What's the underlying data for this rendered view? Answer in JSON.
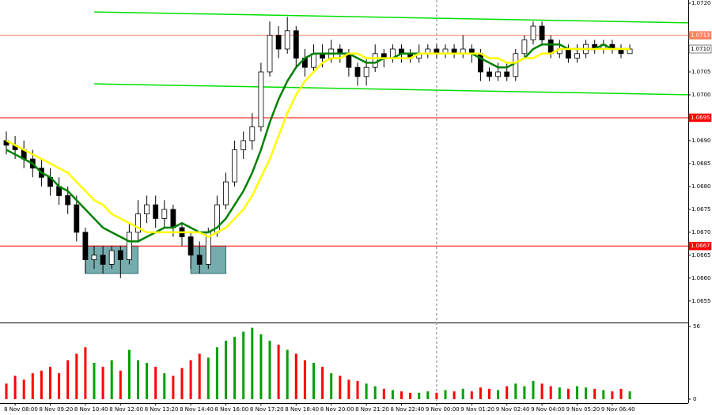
{
  "chart_data": {
    "type": "candlestick",
    "categories": [
      null,
      "8 Nov 08:00",
      null,
      null,
      null,
      "8 Nov 09:20",
      null,
      null,
      null,
      "8 Nov 10:40",
      null,
      null,
      null,
      "8 Nov 12:00",
      null,
      null,
      null,
      "8 Nov 13:20",
      null,
      null,
      null,
      "8 Nov 14:40",
      null,
      null,
      null,
      "8 Nov 16:00",
      null,
      null,
      null,
      "8 Nov 17:20",
      null,
      null,
      null,
      "8 Nov 18:40",
      null,
      null,
      null,
      "8 Nov 20:00",
      null,
      null,
      null,
      "8 Nov 21:20",
      null,
      null,
      null,
      "8 Nov 22:40",
      null,
      null,
      null,
      "9 Nov 00:00",
      null,
      null,
      null,
      "9 Nov 01:20",
      null,
      null,
      null,
      "9 Nov 02:40",
      null,
      null,
      null,
      "9 Nov 04:00",
      null,
      null,
      null,
      "9 Nov 05:20",
      null,
      null,
      null,
      "9 Nov 06:40",
      null,
      null
    ],
    "open": [
      1.069,
      1.0689,
      1.0688,
      1.0686,
      1.0684,
      1.0682,
      1.068,
      1.0678,
      1.0676,
      1.067,
      1.0664,
      1.0665,
      1.0663,
      1.0666,
      1.0664,
      1.067,
      1.0674,
      1.0676,
      1.0673,
      1.0675,
      1.0671,
      1.0669,
      1.0665,
      1.0663,
      1.067,
      1.0676,
      1.0681,
      1.0688,
      1.069,
      1.0693,
      1.0705,
      1.0713,
      1.071,
      1.0714,
      1.0708,
      1.0706,
      1.0709,
      1.0708,
      1.071,
      1.0709,
      1.0706,
      1.0704,
      1.0706,
      1.0709,
      1.0708,
      1.071,
      1.0709,
      1.0708,
      1.0709,
      1.071,
      1.0709,
      1.071,
      1.0709,
      1.071,
      1.0709,
      1.0705,
      1.0704,
      1.0705,
      1.0704,
      1.0709,
      1.0712,
      1.0715,
      1.0712,
      1.0709,
      1.071,
      1.0708,
      1.0709,
      1.0711,
      1.071,
      1.0711,
      1.071,
      1.0709
    ],
    "high": [
      1.0692,
      1.0691,
      1.069,
      1.0688,
      1.0686,
      1.0684,
      1.0682,
      1.068,
      1.0678,
      1.0671,
      1.0667,
      1.0667,
      1.0667,
      1.0667,
      1.0672,
      1.0677,
      1.0678,
      1.0678,
      1.0677,
      1.0676,
      1.0672,
      1.067,
      1.0668,
      1.0671,
      1.0678,
      1.0683,
      1.069,
      1.0692,
      1.0696,
      1.0707,
      1.0716,
      1.0715,
      1.0717,
      1.0715,
      1.071,
      1.0711,
      1.0711,
      1.0712,
      1.0711,
      1.071,
      1.0707,
      1.0708,
      1.0711,
      1.071,
      1.0711,
      1.0711,
      1.071,
      1.0711,
      1.0711,
      1.0711,
      1.0711,
      1.0711,
      1.0713,
      1.0711,
      1.071,
      1.0706,
      1.0707,
      1.0707,
      1.071,
      1.0713,
      1.0716,
      1.0716,
      1.0713,
      1.0712,
      1.0711,
      1.0711,
      1.0712,
      1.0712,
      1.0712,
      1.0712,
      1.0711,
      1.0711
    ],
    "low": [
      1.0687,
      1.0686,
      1.0684,
      1.0682,
      1.068,
      1.0678,
      1.0676,
      1.0674,
      1.0668,
      1.0661,
      1.0662,
      1.0661,
      1.0662,
      1.066,
      1.0663,
      1.0668,
      1.0672,
      1.0671,
      1.0671,
      1.0669,
      1.0667,
      1.0662,
      1.0661,
      1.0662,
      1.0669,
      1.0675,
      1.068,
      1.0686,
      1.0688,
      1.0692,
      1.0704,
      1.0708,
      1.0709,
      1.0706,
      1.0704,
      1.0705,
      1.0706,
      1.0707,
      1.0707,
      1.0704,
      1.0702,
      1.0702,
      1.0705,
      1.0706,
      1.0707,
      1.0707,
      1.0707,
      1.0707,
      1.0708,
      1.0708,
      1.0708,
      1.0708,
      1.0708,
      1.0707,
      1.0703,
      1.0703,
      1.0703,
      1.0703,
      1.0703,
      1.0708,
      1.0711,
      1.0711,
      1.0708,
      1.0708,
      1.0707,
      1.0707,
      1.0708,
      1.0709,
      1.0709,
      1.0709,
      1.0708,
      1.0709
    ],
    "close": [
      1.0689,
      1.0688,
      1.0686,
      1.0684,
      1.0682,
      1.068,
      1.0678,
      1.0676,
      1.067,
      1.0664,
      1.0665,
      1.0663,
      1.0666,
      1.0664,
      1.067,
      1.0674,
      1.0676,
      1.0673,
      1.0675,
      1.0671,
      1.0669,
      1.0665,
      1.0663,
      1.067,
      1.0676,
      1.0681,
      1.0688,
      1.069,
      1.0693,
      1.0705,
      1.0713,
      1.071,
      1.0714,
      1.0708,
      1.0706,
      1.0709,
      1.0708,
      1.071,
      1.0709,
      1.0706,
      1.0704,
      1.0706,
      1.0709,
      1.0708,
      1.071,
      1.0709,
      1.0708,
      1.0709,
      1.071,
      1.0709,
      1.071,
      1.0709,
      1.071,
      1.0709,
      1.0705,
      1.0704,
      1.0705,
      1.0704,
      1.0709,
      1.0712,
      1.0715,
      1.0712,
      1.0709,
      1.071,
      1.0708,
      1.0709,
      1.0711,
      1.071,
      1.0711,
      1.071,
      1.0709,
      1.071
    ],
    "volume": [
      12,
      18,
      15,
      20,
      22,
      25,
      20,
      30,
      35,
      40,
      28,
      25,
      30,
      22,
      38,
      30,
      28,
      25,
      20,
      18,
      24,
      30,
      35,
      32,
      40,
      45,
      48,
      52,
      55,
      50,
      45,
      42,
      38,
      35,
      30,
      28,
      25,
      20,
      18,
      15,
      14,
      12,
      10,
      8,
      7,
      6,
      5,
      5,
      6,
      5,
      7,
      6,
      8,
      6,
      9,
      8,
      7,
      10,
      12,
      10,
      14,
      12,
      10,
      9,
      8,
      10,
      9,
      8,
      7,
      6,
      8,
      6
    ],
    "up_color": "#ffffff",
    "down_color": "#000000",
    "volume_up_color": "#00a000",
    "volume_down_color": "#ff0000",
    "series": [
      {
        "color": "#008000",
        "values": [
          1.0688,
          1.0687,
          1.0686,
          1.0685,
          1.0683,
          1.0682,
          1.068,
          1.0679,
          1.0677,
          1.0675,
          1.0673,
          1.0671,
          1.067,
          1.0669,
          1.0668,
          1.0668,
          1.0669,
          1.067,
          1.0671,
          1.0671,
          1.0672,
          1.0671,
          1.067,
          1.067,
          1.0671,
          1.0673,
          1.0676,
          1.0679,
          1.0683,
          1.0688,
          1.0694,
          1.0699,
          1.0703,
          1.0706,
          1.0708,
          1.0709,
          1.0709,
          1.0709,
          1.0709,
          1.0709,
          1.0708,
          1.0707,
          1.0707,
          1.0708,
          1.0708,
          1.0709,
          1.0709,
          1.0709,
          1.0709,
          1.0709,
          1.0709,
          1.0709,
          1.0709,
          1.0709,
          1.0708,
          1.0707,
          1.0706,
          1.0706,
          1.0707,
          1.0708,
          1.071,
          1.0711,
          1.0711,
          1.0711,
          1.071,
          1.071,
          1.071,
          1.071,
          1.0711,
          1.071,
          1.071,
          1.071
        ]
      },
      {
        "color": "#ffff00",
        "values": [
          1.069,
          1.0689,
          1.0688,
          1.0687,
          1.0686,
          1.0685,
          1.0684,
          1.0683,
          1.0681,
          1.0679,
          1.0677,
          1.0676,
          1.0674,
          1.0673,
          1.0672,
          1.0671,
          1.067,
          1.067,
          1.067,
          1.067,
          1.067,
          1.067,
          1.067,
          1.0669,
          1.067,
          1.0671,
          1.0673,
          1.0675,
          1.0678,
          1.0682,
          1.0686,
          1.0691,
          1.0696,
          1.07,
          1.0703,
          1.0705,
          1.0707,
          1.0708,
          1.0708,
          1.0709,
          1.0709,
          1.0708,
          1.0708,
          1.0708,
          1.0708,
          1.0708,
          1.0708,
          1.0709,
          1.0709,
          1.0709,
          1.0709,
          1.0709,
          1.0709,
          1.0709,
          1.0709,
          1.0708,
          1.0708,
          1.0707,
          1.0707,
          1.0708,
          1.0708,
          1.0709,
          1.0709,
          1.071,
          1.071,
          1.071,
          1.071,
          1.071,
          1.071,
          1.071,
          1.071,
          1.071
        ]
      }
    ],
    "ylim": [
      1.06503,
      1.07207
    ],
    "yticks": [
      {
        "value": 1.072,
        "label": "1.0720"
      },
      {
        "value": 1.0705,
        "label": "1.0705"
      },
      {
        "value": 1.07,
        "label": "1.0700"
      },
      {
        "value": 1.069,
        "label": "1.0690"
      },
      {
        "value": 1.0685,
        "label": "1.0685"
      },
      {
        "value": 1.068,
        "label": "1.0680"
      },
      {
        "value": 1.0675,
        "label": "1.0675"
      },
      {
        "value": 1.067,
        "label": "1.0670"
      },
      {
        "value": 1.0665,
        "label": "1.0665"
      },
      {
        "value": 1.066,
        "label": "1.0660"
      },
      {
        "value": 1.0655,
        "label": "1.0655"
      }
    ],
    "volume_ylim": [
      0,
      56
    ],
    "volume_yticks": [
      56,
      0
    ],
    "levels": [
      {
        "value": 1.0713,
        "label": "1.0713",
        "color": "#ff8060",
        "text_color": "#ffffff"
      },
      {
        "value": 1.071,
        "label": "1.0710",
        "color": "#ffffff",
        "text_color": "#000000"
      },
      {
        "value": 1.0695,
        "label": "1.0695",
        "color": "#ff0000",
        "text_color": "#ffffff"
      },
      {
        "value": 1.0667,
        "label": "1.0667",
        "color": "#ff0000",
        "text_color": "#ffffff"
      }
    ],
    "channel_color": "#00e000",
    "channel": [
      {
        "from": [
          10,
          1.07181
        ],
        "to": [
          78,
          1.07157
        ]
      },
      {
        "from": [
          10,
          1.07024
        ],
        "to": [
          78,
          1.07
        ]
      }
    ],
    "zone_color": "#5f9ea0",
    "zones": [
      {
        "from": 9,
        "to": 15,
        "low": 1.0661,
        "high": 1.0667
      },
      {
        "from": 21,
        "to": 25,
        "low": 1.0661,
        "high": 1.0667
      }
    ],
    "separators": [
      49
    ]
  }
}
